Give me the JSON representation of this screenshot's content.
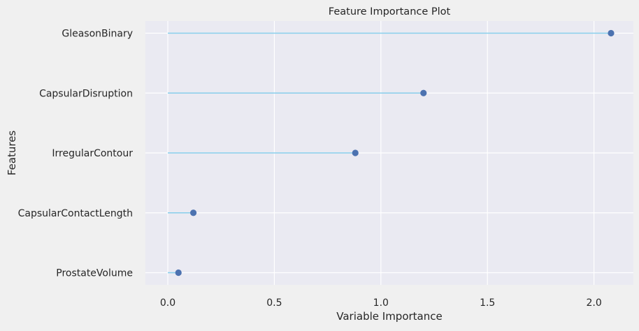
{
  "chart_data": {
    "type": "lollipop",
    "orientation": "horizontal",
    "title": "Feature Importance Plot",
    "xlabel": "Variable Importance",
    "ylabel": "Features",
    "categories": [
      "GleasonBinary",
      "CapsularDisruption",
      "IrregularContour",
      "CapsularContactLength",
      "ProstateVolume"
    ],
    "values": [
      2.08,
      1.2,
      0.88,
      0.12,
      0.05
    ],
    "xlim": [
      -0.105,
      2.185
    ],
    "xticks": [
      0.0,
      0.5,
      1.0,
      1.5,
      2.0
    ],
    "xtick_labels": [
      "0.0",
      "0.5",
      "1.0",
      "1.5",
      "2.0"
    ],
    "grid": true,
    "legend": "none",
    "colors": {
      "figure_background": "#f0f0f0",
      "axes_background": "#eaeaf2",
      "grid": "#ffffff",
      "stem": "#87ceeb",
      "marker": "#4c72b0",
      "text": "#262626"
    }
  }
}
